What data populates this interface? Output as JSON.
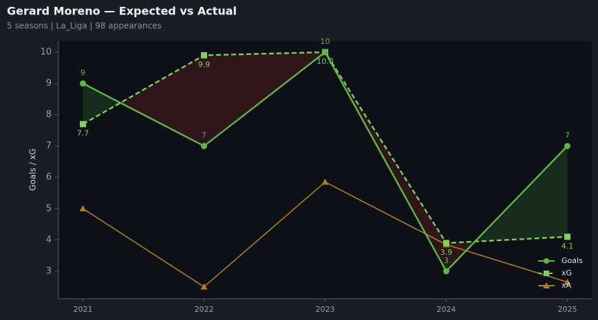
{
  "chart_data": {
    "type": "line",
    "title": "Gerard Moreno — Expected vs Actual",
    "subtitle": "5 seasons | La_Liga | 98 appearances",
    "ylabel": "Goals / xG",
    "categories": [
      "2021",
      "2022",
      "2023",
      "2024",
      "2025"
    ],
    "series": [
      {
        "name": "Goals",
        "color": "#5cb944",
        "marker": "circle",
        "dash": false,
        "values": [
          9,
          7,
          10,
          3,
          7
        ],
        "labels": "above"
      },
      {
        "name": "xG",
        "color": "#7fd15c",
        "marker": "square",
        "dash": true,
        "values": [
          7.7,
          9.9,
          10,
          3.9,
          4.1
        ],
        "value_labels": [
          "7.7",
          "9.9",
          "10.0",
          "3.9",
          "4.1"
        ],
        "labels": "below"
      },
      {
        "name": "xA",
        "color": "#b07d1e",
        "marker": "triangle",
        "dash": false,
        "values": [
          5.0,
          2.5,
          5.85,
          3.85,
          2.65
        ]
      }
    ],
    "fill_between": {
      "above": "rgba(50,120,50,0.28)",
      "below": "rgba(110,35,35,0.35)"
    },
    "ylim": [
      2.12,
      10.35
    ],
    "yticks": [
      3,
      4,
      5,
      6,
      7,
      8,
      9,
      10
    ],
    "grid": false,
    "legend": "lower right"
  }
}
